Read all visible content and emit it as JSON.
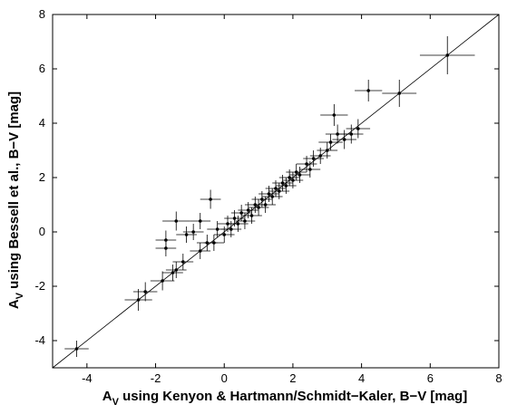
{
  "chart_data": {
    "type": "scatter",
    "title": "",
    "xlabel": {
      "main": "A",
      "sub": "V",
      "rest": " using Kenyon & Hartmann/Schmidt−Kaler, B−V [mag]"
    },
    "ylabel": {
      "main": "A",
      "sub": "V",
      "rest": " using Bessell et al., B−V [mag]"
    },
    "xlim": [
      -5,
      8
    ],
    "ylim": [
      -5,
      8
    ],
    "xticks": [
      -4,
      -2,
      0,
      2,
      4,
      6,
      8
    ],
    "yticks": [
      -4,
      -2,
      0,
      2,
      4,
      6,
      8
    ],
    "grid": false,
    "legend": "none",
    "reference_line": {
      "label": "",
      "x": [
        -5,
        8
      ],
      "y": [
        -5,
        8
      ]
    },
    "colors": {
      "points": "#000000",
      "axes": "#000000",
      "background": "#ffffff"
    },
    "series": [
      {
        "points": [
          {
            "x": -4.3,
            "y": -4.3,
            "ex": 0.35,
            "ey": 0.3
          },
          {
            "x": -2.5,
            "y": -2.5,
            "ex": 0.4,
            "ey": 0.4
          },
          {
            "x": -2.3,
            "y": -2.2,
            "ex": 0.35,
            "ey": 0.35
          },
          {
            "x": -1.8,
            "y": -1.8,
            "ex": 0.35,
            "ey": 0.35
          },
          {
            "x": -1.7,
            "y": -0.3,
            "ex": 0.3,
            "ey": 0.35
          },
          {
            "x": -1.7,
            "y": -0.6,
            "ex": 0.3,
            "ey": 0.3
          },
          {
            "x": -1.5,
            "y": -1.5,
            "ex": 0.3,
            "ey": 0.3
          },
          {
            "x": -1.4,
            "y": 0.4,
            "ex": 0.4,
            "ey": 0.35
          },
          {
            "x": -1.4,
            "y": -1.4,
            "ex": 0.3,
            "ey": 0.3
          },
          {
            "x": -1.2,
            "y": -1.1,
            "ex": 0.3,
            "ey": 0.3
          },
          {
            "x": -1.1,
            "y": -0.1,
            "ex": 0.3,
            "ey": 0.3
          },
          {
            "x": -0.9,
            "y": 0.0,
            "ex": 0.3,
            "ey": 0.3
          },
          {
            "x": -0.7,
            "y": 0.4,
            "ex": 0.3,
            "ey": 0.3
          },
          {
            "x": -0.4,
            "y": 1.2,
            "ex": 0.3,
            "ey": 0.35
          },
          {
            "x": -0.7,
            "y": -0.7,
            "ex": 0.3,
            "ey": 0.3
          },
          {
            "x": -0.5,
            "y": -0.4,
            "ex": 0.3,
            "ey": 0.3
          },
          {
            "x": -0.3,
            "y": -0.4,
            "ex": 0.3,
            "ey": 0.3
          },
          {
            "x": -0.2,
            "y": 0.1,
            "ex": 0.3,
            "ey": 0.3
          },
          {
            "x": 0.0,
            "y": -0.1,
            "ex": 0.3,
            "ey": 0.3
          },
          {
            "x": 0.1,
            "y": 0.3,
            "ex": 0.3,
            "ey": 0.3
          },
          {
            "x": 0.2,
            "y": 0.1,
            "ex": 0.3,
            "ey": 0.3
          },
          {
            "x": 0.3,
            "y": 0.5,
            "ex": 0.3,
            "ey": 0.3
          },
          {
            "x": 0.4,
            "y": 0.3,
            "ex": 0.3,
            "ey": 0.3
          },
          {
            "x": 0.5,
            "y": 0.7,
            "ex": 0.3,
            "ey": 0.3
          },
          {
            "x": 0.6,
            "y": 0.4,
            "ex": 0.3,
            "ey": 0.3
          },
          {
            "x": 0.7,
            "y": 0.8,
            "ex": 0.3,
            "ey": 0.3
          },
          {
            "x": 0.8,
            "y": 0.6,
            "ex": 0.3,
            "ey": 0.3
          },
          {
            "x": 0.9,
            "y": 1.0,
            "ex": 0.3,
            "ey": 0.3
          },
          {
            "x": 1.0,
            "y": 0.9,
            "ex": 0.3,
            "ey": 0.3
          },
          {
            "x": 1.1,
            "y": 1.2,
            "ex": 0.3,
            "ey": 0.3
          },
          {
            "x": 1.2,
            "y": 1.0,
            "ex": 0.3,
            "ey": 0.3
          },
          {
            "x": 1.3,
            "y": 1.4,
            "ex": 0.3,
            "ey": 0.3
          },
          {
            "x": 1.4,
            "y": 1.3,
            "ex": 0.3,
            "ey": 0.3
          },
          {
            "x": 1.5,
            "y": 1.6,
            "ex": 0.3,
            "ey": 0.3
          },
          {
            "x": 1.6,
            "y": 1.5,
            "ex": 0.3,
            "ey": 0.3
          },
          {
            "x": 1.7,
            "y": 1.8,
            "ex": 0.3,
            "ey": 0.3
          },
          {
            "x": 1.8,
            "y": 1.7,
            "ex": 0.3,
            "ey": 0.3
          },
          {
            "x": 1.9,
            "y": 2.0,
            "ex": 0.3,
            "ey": 0.3
          },
          {
            "x": 2.0,
            "y": 1.9,
            "ex": 0.3,
            "ey": 0.3
          },
          {
            "x": 2.1,
            "y": 2.2,
            "ex": 0.3,
            "ey": 0.3
          },
          {
            "x": 2.2,
            "y": 2.1,
            "ex": 0.3,
            "ey": 0.3
          },
          {
            "x": 2.4,
            "y": 2.5,
            "ex": 0.3,
            "ey": 0.3
          },
          {
            "x": 2.5,
            "y": 2.3,
            "ex": 0.3,
            "ey": 0.3
          },
          {
            "x": 2.6,
            "y": 2.7,
            "ex": 0.3,
            "ey": 0.3
          },
          {
            "x": 2.8,
            "y": 2.8,
            "ex": 0.3,
            "ey": 0.3
          },
          {
            "x": 3.0,
            "y": 3.0,
            "ex": 0.3,
            "ey": 0.3
          },
          {
            "x": 3.1,
            "y": 3.3,
            "ex": 0.35,
            "ey": 0.3
          },
          {
            "x": 3.2,
            "y": 4.3,
            "ex": 0.4,
            "ey": 0.4
          },
          {
            "x": 3.3,
            "y": 3.6,
            "ex": 0.35,
            "ey": 0.35
          },
          {
            "x": 3.5,
            "y": 3.4,
            "ex": 0.35,
            "ey": 0.35
          },
          {
            "x": 3.7,
            "y": 3.6,
            "ex": 0.35,
            "ey": 0.35
          },
          {
            "x": 3.9,
            "y": 3.8,
            "ex": 0.35,
            "ey": 0.35
          },
          {
            "x": 4.2,
            "y": 5.2,
            "ex": 0.4,
            "ey": 0.4
          },
          {
            "x": 5.1,
            "y": 5.1,
            "ex": 0.5,
            "ey": 0.5
          },
          {
            "x": 6.5,
            "y": 6.5,
            "ex": 0.8,
            "ey": 0.7
          }
        ]
      }
    ]
  }
}
